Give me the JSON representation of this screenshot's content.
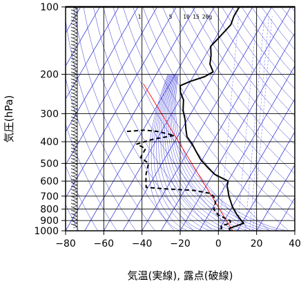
{
  "chart_data": {
    "type": "line",
    "title": "",
    "xlabel": "気温(実線), 露点(破線)",
    "ylabel": "気圧(hPa)",
    "xlim": [
      -80,
      40
    ],
    "ylim": [
      1000,
      100
    ],
    "y_scale": "log",
    "x_ticks": [
      "−80",
      "−60",
      "−40",
      "−20",
      "0",
      "20",
      "40"
    ],
    "x_tick_values": [
      -80,
      -60,
      -40,
      -20,
      0,
      20,
      40
    ],
    "y_ticks": [
      "100",
      "200",
      "300",
      "400",
      "500",
      "600",
      "700",
      "800",
      "900",
      "1000"
    ],
    "y_tick_values": [
      100,
      200,
      300,
      400,
      500,
      600,
      700,
      800,
      900,
      1000
    ],
    "mixing_ratio_labels": [
      "1",
      "5",
      "10",
      "15",
      "20g"
    ],
    "mixing_ratio_values": [
      1,
      5,
      10,
      15,
      20
    ],
    "series": [
      {
        "name": "",
        "style": "solid",
        "color": "#000000",
        "points": [
          {
            "p": 100,
            "t": -57
          },
          {
            "p": 110,
            "t": -57
          },
          {
            "p": 120,
            "t": -56
          },
          {
            "p": 135,
            "t": -58
          },
          {
            "p": 150,
            "t": -60
          },
          {
            "p": 165,
            "t": -57
          },
          {
            "p": 180,
            "t": -55
          },
          {
            "p": 195,
            "t": -51
          },
          {
            "p": 205,
            "t": -54
          },
          {
            "p": 215,
            "t": -60
          },
          {
            "p": 225,
            "t": -64
          },
          {
            "p": 240,
            "t": -62
          },
          {
            "p": 260,
            "t": -58
          },
          {
            "p": 290,
            "t": -55
          },
          {
            "p": 320,
            "t": -51
          },
          {
            "p": 350,
            "t": -48
          },
          {
            "p": 380,
            "t": -45
          },
          {
            "p": 410,
            "t": -40
          },
          {
            "p": 440,
            "t": -36
          },
          {
            "p": 480,
            "t": -31
          },
          {
            "p": 520,
            "t": -25
          },
          {
            "p": 560,
            "t": -19
          },
          {
            "p": 600,
            "t": -10
          },
          {
            "p": 630,
            "t": -9
          },
          {
            "p": 700,
            "t": -5
          },
          {
            "p": 780,
            "t": 0
          },
          {
            "p": 850,
            "t": 5
          },
          {
            "p": 900,
            "t": 9
          },
          {
            "p": 925,
            "t": 11
          },
          {
            "p": 950,
            "t": 8
          },
          {
            "p": 975,
            "t": 5
          },
          {
            "p": 1000,
            "t": 6
          }
        ]
      },
      {
        "name": "",
        "style": "dashed",
        "color": "#000000",
        "points": [
          {
            "p": 360,
            "t": -78
          },
          {
            "p": 355,
            "t": -69
          },
          {
            "p": 360,
            "t": -62
          },
          {
            "p": 375,
            "t": -52
          },
          {
            "p": 390,
            "t": -62
          },
          {
            "p": 410,
            "t": -69
          },
          {
            "p": 430,
            "t": -63
          },
          {
            "p": 470,
            "t": -63
          },
          {
            "p": 500,
            "t": -57
          },
          {
            "p": 560,
            "t": -55
          },
          {
            "p": 600,
            "t": -53
          },
          {
            "p": 640,
            "t": -51
          },
          {
            "p": 650,
            "t": -40
          },
          {
            "p": 660,
            "t": -25
          },
          {
            "p": 680,
            "t": -16
          },
          {
            "p": 700,
            "t": -13
          },
          {
            "p": 750,
            "t": -10
          },
          {
            "p": 800,
            "t": -9
          },
          {
            "p": 850,
            "t": -5
          },
          {
            "p": 900,
            "t": 3
          },
          {
            "p": 925,
            "t": 4
          },
          {
            "p": 950,
            "t": 0
          },
          {
            "p": 975,
            "t": 1
          },
          {
            "p": 1000,
            "t": 0
          }
        ]
      }
    ],
    "colors": {
      "background": "#ffffff",
      "grid": "#000000",
      "isotherm": "#0000cc",
      "dry_adiabat": "#3333cc",
      "moist_adiabat": "#4444dd",
      "mixing_ratio": "#6666ff",
      "reference_line": "#ff0000",
      "wind_barb": "#000000"
    },
    "grid": true,
    "wind_barb_column": true
  }
}
